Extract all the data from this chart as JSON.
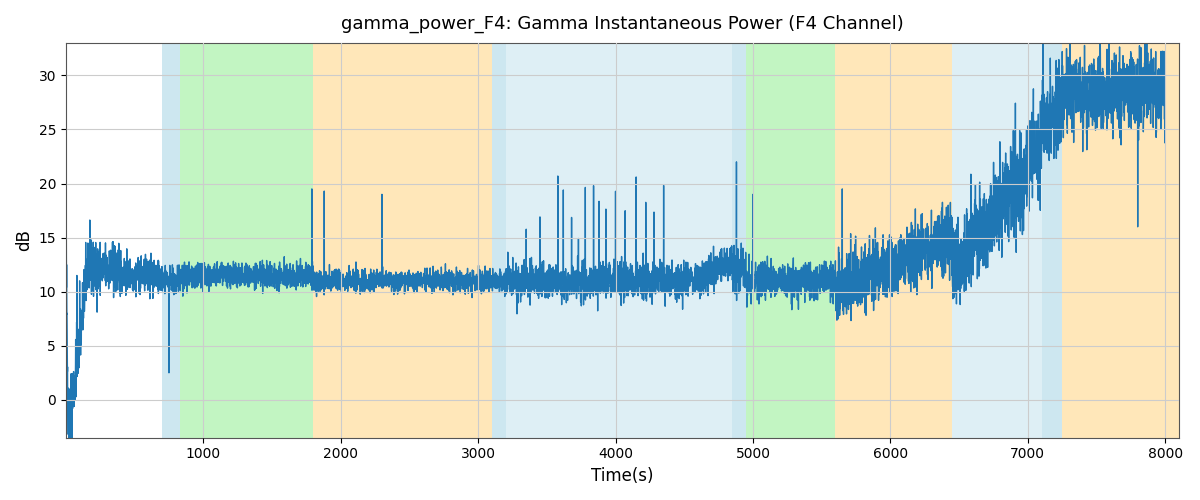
{
  "title": "gamma_power_F4: Gamma Instantaneous Power (F4 Channel)",
  "xlabel": "Time(s)",
  "ylabel": "dB",
  "xlim": [
    0,
    8100
  ],
  "ylim": [
    -3.5,
    33
  ],
  "yticks": [
    0,
    5,
    10,
    15,
    20,
    25,
    30
  ],
  "xticks": [
    1000,
    2000,
    3000,
    4000,
    5000,
    6000,
    7000,
    8000
  ],
  "line_color": "#1f77b4",
  "line_width": 1.0,
  "background_color": "#ffffff",
  "grid_color": "#cccccc",
  "bands": [
    {
      "xmin": 700,
      "xmax": 830,
      "color": "#add8e6",
      "alpha": 0.6
    },
    {
      "xmin": 830,
      "xmax": 1800,
      "color": "#90EE90",
      "alpha": 0.55
    },
    {
      "xmin": 1800,
      "xmax": 3100,
      "color": "#FFD580",
      "alpha": 0.55
    },
    {
      "xmin": 3100,
      "xmax": 3200,
      "color": "#add8e6",
      "alpha": 0.6
    },
    {
      "xmin": 3200,
      "xmax": 3600,
      "color": "#add8e6",
      "alpha": 0.4
    },
    {
      "xmin": 3600,
      "xmax": 4850,
      "color": "#add8e6",
      "alpha": 0.4
    },
    {
      "xmin": 4850,
      "xmax": 4950,
      "color": "#add8e6",
      "alpha": 0.6
    },
    {
      "xmin": 4950,
      "xmax": 5600,
      "color": "#90EE90",
      "alpha": 0.55
    },
    {
      "xmin": 5600,
      "xmax": 6450,
      "color": "#FFD580",
      "alpha": 0.55
    },
    {
      "xmin": 6450,
      "xmax": 7100,
      "color": "#add8e6",
      "alpha": 0.4
    },
    {
      "xmin": 7100,
      "xmax": 7250,
      "color": "#add8e6",
      "alpha": 0.6
    },
    {
      "xmin": 7250,
      "xmax": 8100,
      "color": "#FFD580",
      "alpha": 0.55
    }
  ],
  "figsize": [
    12,
    5
  ],
  "dpi": 100
}
